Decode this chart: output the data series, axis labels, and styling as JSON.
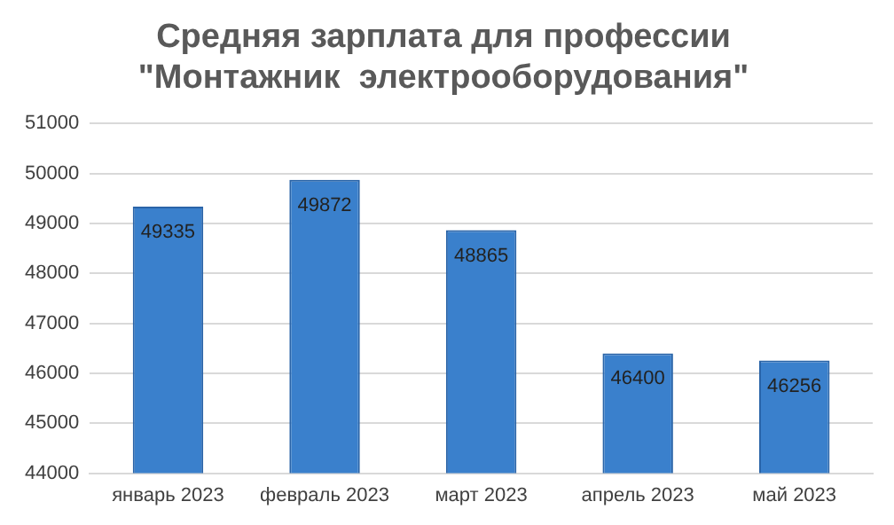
{
  "chart_data": {
    "type": "bar",
    "title": "Средняя зарплата для профессии\n\"Монтажник  электрооборудования\"",
    "categories": [
      "январь 2023",
      "февраль 2023",
      "март 2023",
      "апрель 2023",
      "май 2023"
    ],
    "values": [
      49335,
      49872,
      48865,
      46400,
      46256
    ],
    "color": "#3a80cc",
    "ylim": [
      44000,
      51000
    ],
    "yticks": [
      44000,
      45000,
      46000,
      47000,
      48000,
      49000,
      50000,
      51000
    ],
    "grid": "y",
    "data_labels": true,
    "legend": false
  }
}
